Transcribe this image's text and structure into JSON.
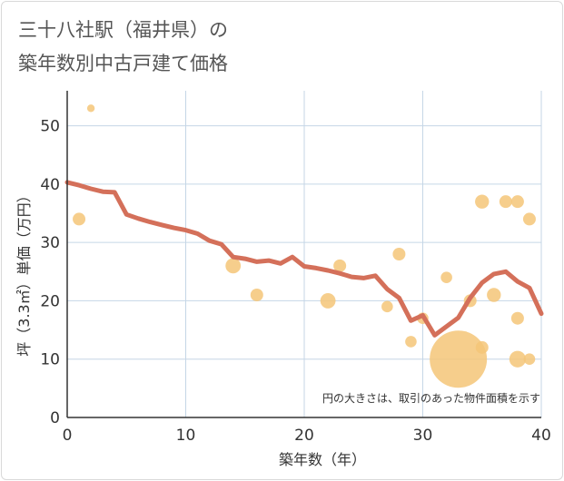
{
  "chart_data": {
    "type": "scatter",
    "title_lines": [
      "三十八社駅（福井県）の",
      "築年数別中古戸建て価格"
    ],
    "xlabel": "築年数（年）",
    "ylabel": "坪（3.3㎡）単価（万円）",
    "xlim": [
      0,
      40
    ],
    "ylim": [
      0,
      56
    ],
    "xticks": [
      0,
      10,
      20,
      30,
      40
    ],
    "yticks": [
      0,
      10,
      20,
      30,
      40,
      50
    ],
    "grid": true,
    "note": "円の大きさは、取引のあった物件面積を示す",
    "colors": {
      "points": "#f5c678",
      "line": "#d4705a",
      "grid": "#c5d6e6",
      "axis": "#333333"
    },
    "points": [
      {
        "x": 1,
        "y": 34,
        "size": 1
      },
      {
        "x": 2,
        "y": 53,
        "size": 0.6
      },
      {
        "x": 14,
        "y": 26,
        "size": 1.2
      },
      {
        "x": 16,
        "y": 21,
        "size": 1
      },
      {
        "x": 22,
        "y": 20,
        "size": 1.2
      },
      {
        "x": 23,
        "y": 26,
        "size": 1
      },
      {
        "x": 27,
        "y": 19,
        "size": 0.9
      },
      {
        "x": 28,
        "y": 28,
        "size": 1
      },
      {
        "x": 29,
        "y": 13,
        "size": 0.9
      },
      {
        "x": 30,
        "y": 17,
        "size": 0.9
      },
      {
        "x": 32,
        "y": 24,
        "size": 0.9
      },
      {
        "x": 33,
        "y": 10,
        "size": 4.5
      },
      {
        "x": 34,
        "y": 20,
        "size": 1
      },
      {
        "x": 35,
        "y": 37,
        "size": 1.1
      },
      {
        "x": 35,
        "y": 12,
        "size": 1
      },
      {
        "x": 36,
        "y": 21,
        "size": 1.1
      },
      {
        "x": 37,
        "y": 37,
        "size": 1
      },
      {
        "x": 38,
        "y": 37,
        "size": 1
      },
      {
        "x": 38,
        "y": 17,
        "size": 1
      },
      {
        "x": 38,
        "y": 10,
        "size": 1.3
      },
      {
        "x": 39,
        "y": 34,
        "size": 1
      },
      {
        "x": 39,
        "y": 10,
        "size": 0.9
      }
    ],
    "trend": {
      "x": [
        0,
        1,
        2,
        3,
        4,
        5,
        6,
        7,
        8,
        9,
        10,
        11,
        12,
        13,
        14,
        15,
        16,
        17,
        18,
        19,
        20,
        21,
        22,
        23,
        24,
        25,
        26,
        27,
        28,
        29,
        30,
        31,
        32,
        33,
        34,
        35,
        36,
        37,
        38,
        39,
        40
      ],
      "y": [
        40.3,
        39.8,
        39.2,
        38.7,
        38.6,
        34.8,
        34.1,
        33.5,
        33.0,
        32.5,
        32.1,
        31.5,
        30.3,
        29.7,
        27.5,
        27.2,
        26.7,
        26.9,
        26.4,
        27.5,
        25.9,
        25.6,
        25.2,
        24.7,
        24.1,
        23.9,
        24.3,
        22.0,
        20.5,
        16.6,
        17.5,
        14.1,
        15.6,
        17.1,
        20.5,
        23.1,
        24.6,
        25.0,
        23.3,
        22.2,
        17.8
      ]
    }
  }
}
